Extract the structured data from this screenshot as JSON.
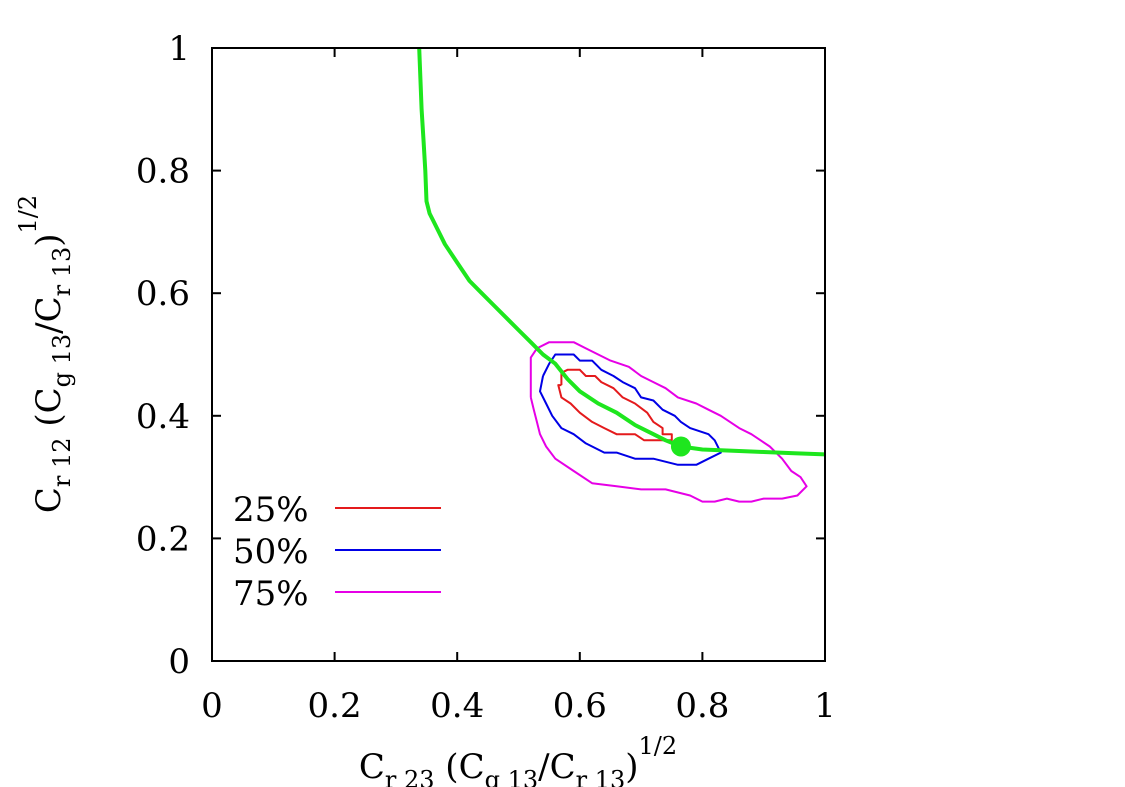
{
  "chart_data": {
    "type": "line",
    "title": "",
    "xlabel": {
      "base": "C",
      "sub1": "r 23",
      "open": " (C",
      "sub2": "g 13",
      "slash": "/C",
      "sub3": "r 13",
      "close": ")",
      "sup": "1/2"
    },
    "ylabel": {
      "base": "C",
      "sub1": "r 12",
      "open": " (C",
      "sub2": "g 13",
      "slash": "/C",
      "sub3": "r 13",
      "close": ")",
      "sup": "1/2"
    },
    "xlim": [
      0,
      1
    ],
    "ylim": [
      0,
      1
    ],
    "xticks": [
      "0",
      "0.2",
      "0.4",
      "0.6",
      "0.8",
      "1"
    ],
    "yticks": [
      "0",
      "0.2",
      "0.4",
      "0.6",
      "0.8",
      "1"
    ],
    "grid": false,
    "legend_position": "bottom-left",
    "series": [
      {
        "name": "25%",
        "color": "#e41a1c",
        "points": [
          [
            0.57,
            0.45
          ],
          [
            0.57,
            0.47
          ],
          [
            0.58,
            0.475
          ],
          [
            0.6,
            0.475
          ],
          [
            0.61,
            0.465
          ],
          [
            0.625,
            0.465
          ],
          [
            0.635,
            0.455
          ],
          [
            0.655,
            0.445
          ],
          [
            0.67,
            0.43
          ],
          [
            0.69,
            0.42
          ],
          [
            0.71,
            0.405
          ],
          [
            0.72,
            0.39
          ],
          [
            0.735,
            0.38
          ],
          [
            0.735,
            0.37
          ],
          [
            0.75,
            0.37
          ],
          [
            0.75,
            0.36
          ],
          [
            0.72,
            0.36
          ],
          [
            0.705,
            0.36
          ],
          [
            0.69,
            0.37
          ],
          [
            0.66,
            0.37
          ],
          [
            0.64,
            0.38
          ],
          [
            0.62,
            0.39
          ],
          [
            0.6,
            0.405
          ],
          [
            0.585,
            0.42
          ],
          [
            0.57,
            0.43
          ],
          [
            0.565,
            0.45
          ],
          [
            0.57,
            0.45
          ]
        ]
      },
      {
        "name": "50%",
        "color": "#0000e6",
        "points": [
          [
            0.54,
            0.465
          ],
          [
            0.55,
            0.485
          ],
          [
            0.56,
            0.5
          ],
          [
            0.59,
            0.5
          ],
          [
            0.6,
            0.49
          ],
          [
            0.62,
            0.49
          ],
          [
            0.635,
            0.475
          ],
          [
            0.655,
            0.465
          ],
          [
            0.67,
            0.455
          ],
          [
            0.69,
            0.445
          ],
          [
            0.7,
            0.43
          ],
          [
            0.72,
            0.425
          ],
          [
            0.735,
            0.41
          ],
          [
            0.755,
            0.4
          ],
          [
            0.765,
            0.39
          ],
          [
            0.78,
            0.38
          ],
          [
            0.81,
            0.37
          ],
          [
            0.82,
            0.36
          ],
          [
            0.83,
            0.34
          ],
          [
            0.81,
            0.33
          ],
          [
            0.79,
            0.32
          ],
          [
            0.76,
            0.32
          ],
          [
            0.72,
            0.33
          ],
          [
            0.69,
            0.33
          ],
          [
            0.66,
            0.34
          ],
          [
            0.64,
            0.34
          ],
          [
            0.61,
            0.355
          ],
          [
            0.59,
            0.37
          ],
          [
            0.57,
            0.38
          ],
          [
            0.555,
            0.4
          ],
          [
            0.545,
            0.42
          ],
          [
            0.535,
            0.44
          ],
          [
            0.54,
            0.465
          ]
        ]
      },
      {
        "name": "75%",
        "color": "#e600e6",
        "points": [
          [
            0.52,
            0.43
          ],
          [
            0.52,
            0.495
          ],
          [
            0.53,
            0.51
          ],
          [
            0.55,
            0.52
          ],
          [
            0.59,
            0.52
          ],
          [
            0.61,
            0.51
          ],
          [
            0.63,
            0.5
          ],
          [
            0.65,
            0.49
          ],
          [
            0.68,
            0.48
          ],
          [
            0.7,
            0.465
          ],
          [
            0.72,
            0.455
          ],
          [
            0.74,
            0.445
          ],
          [
            0.76,
            0.43
          ],
          [
            0.79,
            0.42
          ],
          [
            0.81,
            0.41
          ],
          [
            0.83,
            0.4
          ],
          [
            0.86,
            0.38
          ],
          [
            0.88,
            0.37
          ],
          [
            0.91,
            0.35
          ],
          [
            0.93,
            0.33
          ],
          [
            0.945,
            0.31
          ],
          [
            0.96,
            0.3
          ],
          [
            0.97,
            0.285
          ],
          [
            0.955,
            0.27
          ],
          [
            0.93,
            0.265
          ],
          [
            0.9,
            0.265
          ],
          [
            0.88,
            0.26
          ],
          [
            0.86,
            0.26
          ],
          [
            0.84,
            0.265
          ],
          [
            0.82,
            0.26
          ],
          [
            0.8,
            0.26
          ],
          [
            0.78,
            0.27
          ],
          [
            0.74,
            0.28
          ],
          [
            0.7,
            0.28
          ],
          [
            0.66,
            0.285
          ],
          [
            0.62,
            0.29
          ],
          [
            0.59,
            0.31
          ],
          [
            0.56,
            0.33
          ],
          [
            0.545,
            0.35
          ],
          [
            0.535,
            0.37
          ],
          [
            0.53,
            0.39
          ],
          [
            0.525,
            0.41
          ],
          [
            0.52,
            0.43
          ]
        ]
      },
      {
        "name": "",
        "color": "#1ee61e",
        "points": [
          [
            0.338,
            1.0
          ],
          [
            0.34,
            0.95
          ],
          [
            0.342,
            0.9
          ],
          [
            0.345,
            0.85
          ],
          [
            0.348,
            0.8
          ],
          [
            0.35,
            0.75
          ],
          [
            0.355,
            0.73
          ],
          [
            0.36,
            0.72
          ],
          [
            0.37,
            0.7
          ],
          [
            0.38,
            0.68
          ],
          [
            0.4,
            0.65
          ],
          [
            0.42,
            0.62
          ],
          [
            0.44,
            0.6
          ],
          [
            0.46,
            0.58
          ],
          [
            0.48,
            0.56
          ],
          [
            0.5,
            0.54
          ],
          [
            0.52,
            0.52
          ],
          [
            0.54,
            0.5
          ],
          [
            0.56,
            0.485
          ],
          [
            0.58,
            0.46
          ],
          [
            0.6,
            0.44
          ],
          [
            0.63,
            0.42
          ],
          [
            0.66,
            0.405
          ],
          [
            0.69,
            0.385
          ],
          [
            0.72,
            0.37
          ],
          [
            0.74,
            0.36
          ],
          [
            0.765,
            0.35
          ],
          [
            0.8,
            0.345
          ],
          [
            0.85,
            0.343
          ],
          [
            0.9,
            0.341
          ],
          [
            0.95,
            0.339
          ],
          [
            1.0,
            0.337
          ]
        ]
      }
    ],
    "marker": {
      "x": 0.765,
      "y": 0.35,
      "color": "#1ee61e"
    }
  }
}
